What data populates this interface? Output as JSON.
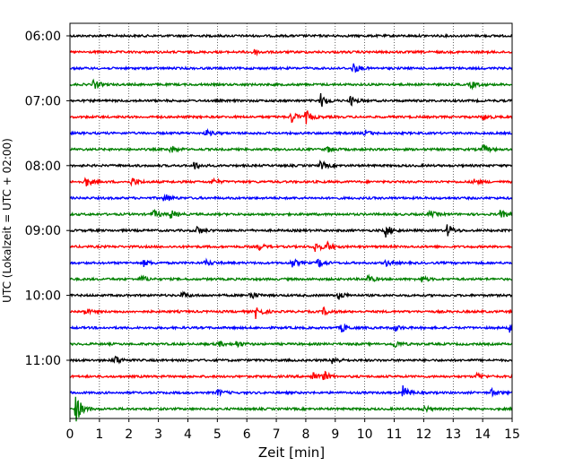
{
  "chart_data": {
    "type": "line",
    "chart_kind": "helicorder seismogram",
    "xlabel": "Zeit  [min]",
    "ylabel": "UTC (Lokalzeit = UTC + 02:00)",
    "xlim": [
      0,
      15
    ],
    "x_ticks": [
      0,
      1,
      2,
      3,
      4,
      5,
      6,
      7,
      8,
      9,
      10,
      11,
      12,
      13,
      14,
      15
    ],
    "grid": "vertical dotted at each minute",
    "trace_interval_minutes": 15,
    "trace_colors": [
      "#000000",
      "#ff0000",
      "#0000ff",
      "#008000"
    ],
    "y_tick_labels": [
      "06:00",
      "07:00",
      "08:00",
      "09:00",
      "10:00",
      "11:00"
    ],
    "traces": [
      {
        "start": "06:00",
        "color": "#000000",
        "events": []
      },
      {
        "start": "06:15",
        "color": "#ff0000",
        "events": [
          {
            "minute": 6.2,
            "amp": 0.4
          }
        ]
      },
      {
        "start": "06:30",
        "color": "#0000ff",
        "events": [
          {
            "minute": 9.6,
            "amp": 0.7
          }
        ]
      },
      {
        "start": "06:45",
        "color": "#008000",
        "events": [
          {
            "minute": 0.8,
            "amp": 0.6
          },
          {
            "minute": 13.6,
            "amp": 0.5
          }
        ]
      },
      {
        "start": "07:00",
        "color": "#000000",
        "events": [
          {
            "minute": 8.5,
            "amp": 0.9
          },
          {
            "minute": 9.5,
            "amp": 0.6
          }
        ]
      },
      {
        "start": "07:15",
        "color": "#ff0000",
        "events": [
          {
            "minute": 7.5,
            "amp": 0.8
          },
          {
            "minute": 8.0,
            "amp": 0.8
          },
          {
            "minute": 14.0,
            "amp": 0.4
          }
        ]
      },
      {
        "start": "07:30",
        "color": "#0000ff",
        "events": [
          {
            "minute": 4.6,
            "amp": 0.4
          },
          {
            "minute": 10.0,
            "amp": 0.4
          }
        ]
      },
      {
        "start": "07:45",
        "color": "#008000",
        "events": [
          {
            "minute": 3.4,
            "amp": 0.5
          },
          {
            "minute": 8.7,
            "amp": 0.4
          },
          {
            "minute": 14.0,
            "amp": 0.5
          }
        ]
      },
      {
        "start": "08:00",
        "color": "#000000",
        "events": [
          {
            "minute": 4.2,
            "amp": 0.5
          },
          {
            "minute": 8.5,
            "amp": 0.6
          }
        ]
      },
      {
        "start": "08:15",
        "color": "#ff0000",
        "events": [
          {
            "minute": 0.5,
            "amp": 0.7
          },
          {
            "minute": 2.1,
            "amp": 0.6
          },
          {
            "minute": 4.8,
            "amp": 0.4
          },
          {
            "minute": 13.7,
            "amp": 0.4
          }
        ]
      },
      {
        "start": "08:30",
        "color": "#0000ff",
        "events": [
          {
            "minute": 3.2,
            "amp": 0.6
          }
        ]
      },
      {
        "start": "08:45",
        "color": "#008000",
        "events": [
          {
            "minute": 2.8,
            "amp": 0.6
          },
          {
            "minute": 3.4,
            "amp": 0.6
          },
          {
            "minute": 12.2,
            "amp": 0.4
          },
          {
            "minute": 14.6,
            "amp": 0.5
          }
        ]
      },
      {
        "start": "09:00",
        "color": "#000000",
        "events": [
          {
            "minute": 4.3,
            "amp": 0.5
          },
          {
            "minute": 10.7,
            "amp": 0.8
          },
          {
            "minute": 12.8,
            "amp": 0.8
          }
        ]
      },
      {
        "start": "09:15",
        "color": "#ff0000",
        "events": [
          {
            "minute": 6.4,
            "amp": 0.4
          },
          {
            "minute": 8.3,
            "amp": 0.7
          },
          {
            "minute": 8.7,
            "amp": 0.6
          }
        ]
      },
      {
        "start": "09:30",
        "color": "#0000ff",
        "events": [
          {
            "minute": 2.5,
            "amp": 0.4
          },
          {
            "minute": 4.6,
            "amp": 0.4
          },
          {
            "minute": 7.5,
            "amp": 0.6
          },
          {
            "minute": 8.4,
            "amp": 0.6
          },
          {
            "minute": 10.7,
            "amp": 0.4
          }
        ]
      },
      {
        "start": "09:45",
        "color": "#008000",
        "events": [
          {
            "minute": 2.4,
            "amp": 0.5
          },
          {
            "minute": 10.1,
            "amp": 0.5
          },
          {
            "minute": 11.9,
            "amp": 0.4
          }
        ]
      },
      {
        "start": "10:00",
        "color": "#000000",
        "events": [
          {
            "minute": 3.8,
            "amp": 0.4
          },
          {
            "minute": 6.1,
            "amp": 0.6
          },
          {
            "minute": 9.1,
            "amp": 0.5
          }
        ]
      },
      {
        "start": "10:15",
        "color": "#ff0000",
        "events": [
          {
            "minute": 0.5,
            "amp": 0.4
          },
          {
            "minute": 6.3,
            "amp": 0.8
          },
          {
            "minute": 8.6,
            "amp": 0.5
          }
        ]
      },
      {
        "start": "10:30",
        "color": "#0000ff",
        "events": [
          {
            "minute": 9.2,
            "amp": 0.6
          },
          {
            "minute": 11.0,
            "amp": 0.4
          },
          {
            "minute": 14.9,
            "amp": 0.7
          }
        ]
      },
      {
        "start": "10:45",
        "color": "#008000",
        "events": [
          {
            "minute": 5.0,
            "amp": 0.4
          },
          {
            "minute": 5.6,
            "amp": 0.5
          },
          {
            "minute": 11.0,
            "amp": 0.5
          }
        ]
      },
      {
        "start": "11:00",
        "color": "#000000",
        "events": [
          {
            "minute": 1.5,
            "amp": 0.7
          },
          {
            "minute": 8.9,
            "amp": 0.5
          }
        ]
      },
      {
        "start": "11:15",
        "color": "#ff0000",
        "events": [
          {
            "minute": 8.2,
            "amp": 0.7
          },
          {
            "minute": 8.6,
            "amp": 0.6
          },
          {
            "minute": 13.8,
            "amp": 0.4
          }
        ]
      },
      {
        "start": "11:30",
        "color": "#0000ff",
        "events": [
          {
            "minute": 5.0,
            "amp": 0.4
          },
          {
            "minute": 11.3,
            "amp": 0.9
          },
          {
            "minute": 14.3,
            "amp": 0.5
          }
        ]
      },
      {
        "start": "11:45",
        "color": "#008000",
        "events": [
          {
            "minute": 0.2,
            "amp": 1.8
          },
          {
            "minute": 12.0,
            "amp": 0.4
          }
        ]
      }
    ]
  }
}
